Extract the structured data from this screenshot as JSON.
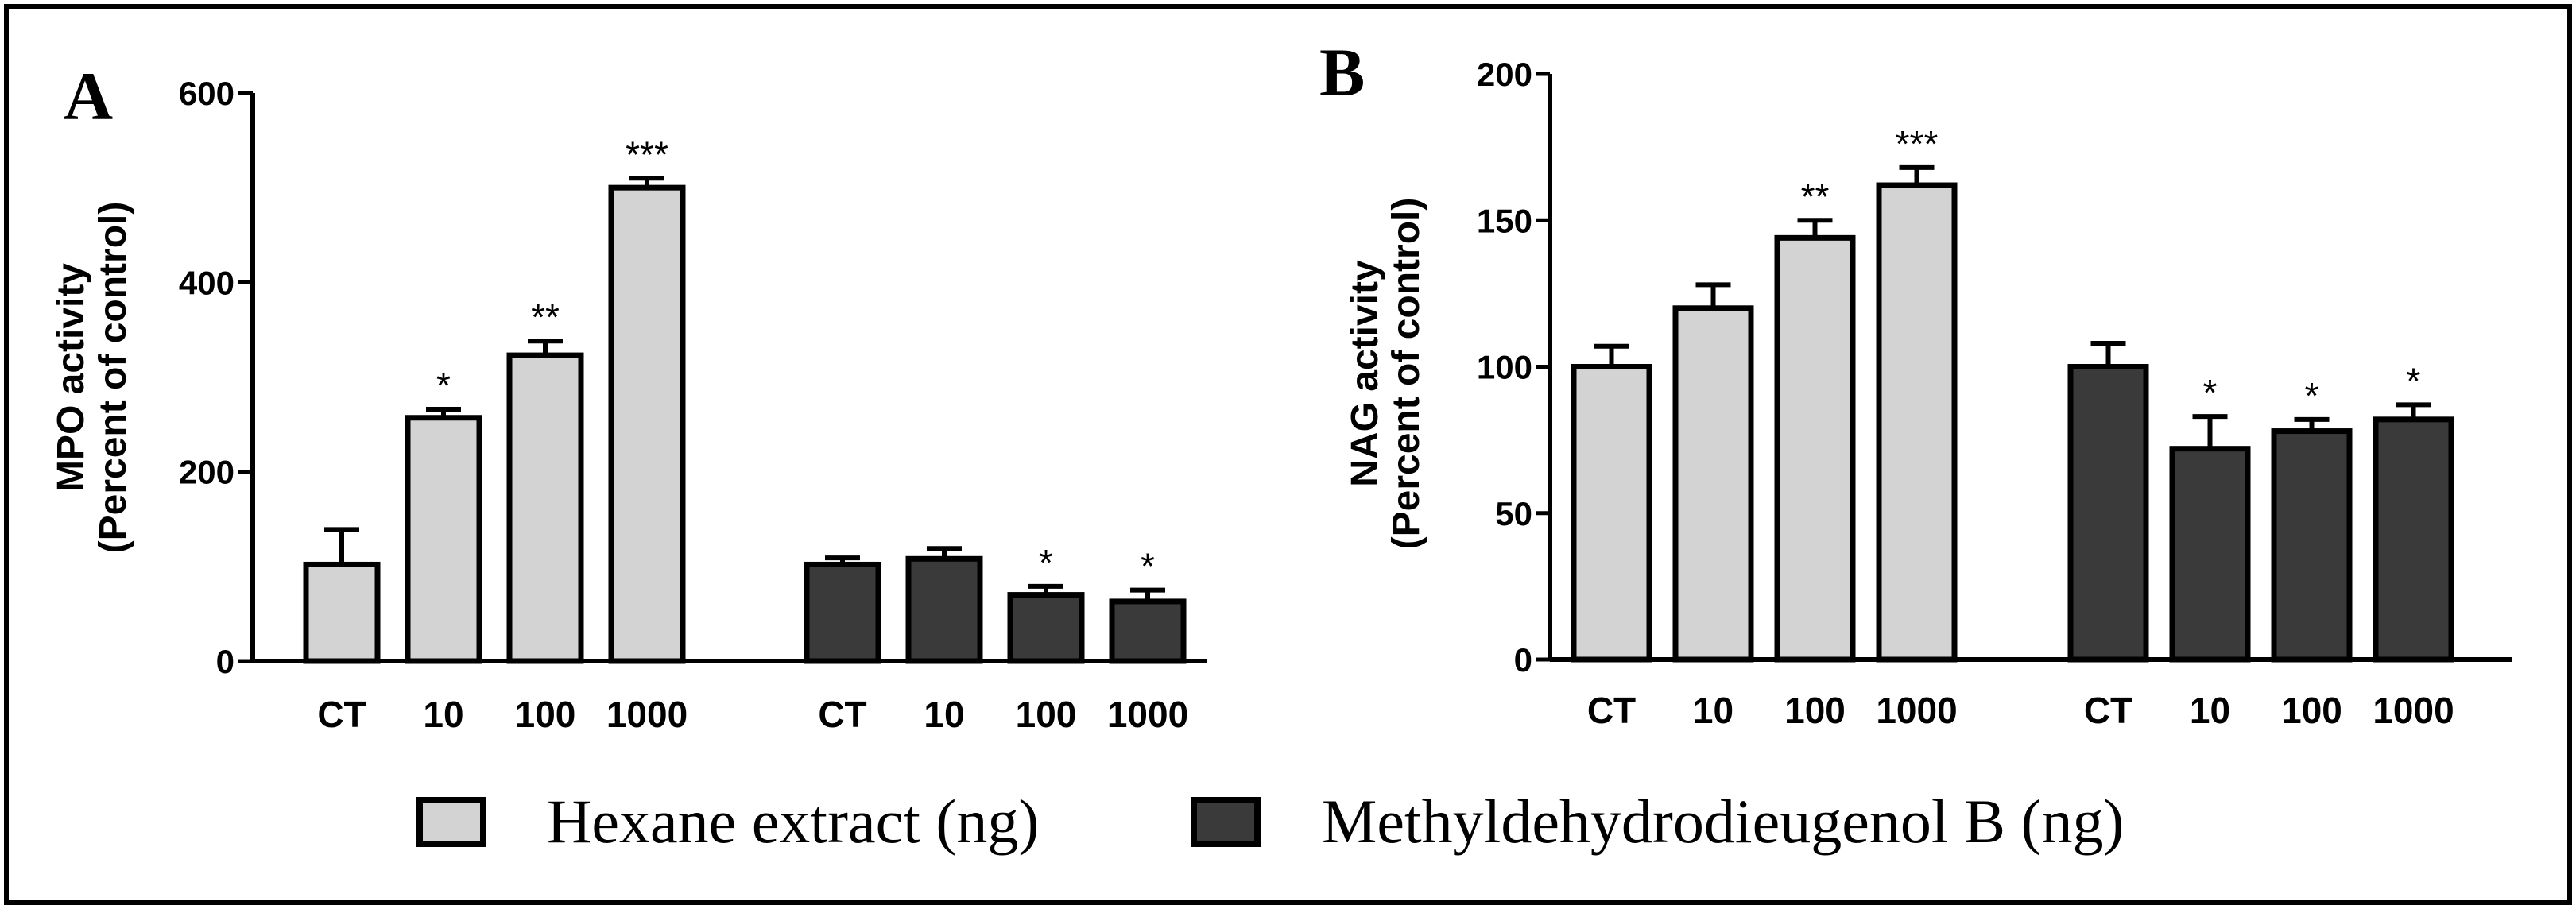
{
  "colors": {
    "hexane": "#d3d3d3",
    "methyl": "#3a3a3a",
    "stroke": "#000000",
    "frame": "#000000"
  },
  "legend": {
    "entries": [
      {
        "label": "Hexane extract (ng)",
        "color": "#d3d3d3"
      },
      {
        "label": "Methyldehydrodieugenol B (ng)",
        "color": "#3a3a3a"
      }
    ]
  },
  "chart_data": [
    {
      "panel": "A",
      "type": "bar",
      "title": "",
      "ylabel_line1": "MPO activity",
      "ylabel_line2": "(Percent of control)",
      "ylim": [
        0,
        600
      ],
      "yticks": [
        0,
        200,
        400,
        600
      ],
      "categories": [
        "CT",
        "10",
        "100",
        "1000"
      ],
      "series": [
        {
          "name": "Hexane extract (ng)",
          "values": [
            102,
            257,
            323,
            500
          ],
          "errors": [
            37,
            9,
            15,
            10
          ],
          "significance": [
            "",
            "*",
            "**",
            "***"
          ]
        },
        {
          "name": "Methyldehydrodieugenol B (ng)",
          "values": [
            102,
            108,
            70,
            63
          ],
          "errors": [
            7,
            11,
            9,
            12
          ],
          "significance": [
            "",
            "",
            "*",
            "*"
          ]
        }
      ]
    },
    {
      "panel": "B",
      "type": "bar",
      "title": "",
      "ylabel_line1": "NAG activity",
      "ylabel_line2": "(Percent of control)",
      "ylim": [
        0,
        200
      ],
      "yticks": [
        0,
        50,
        100,
        150,
        200
      ],
      "categories": [
        "CT",
        "10",
        "100",
        "1000"
      ],
      "series": [
        {
          "name": "Hexane extract (ng)",
          "values": [
            100,
            120,
            144,
            162
          ],
          "errors": [
            7,
            8,
            6,
            6
          ],
          "significance": [
            "",
            "",
            "**",
            "***"
          ]
        },
        {
          "name": "Methyldehydrodieugenol B (ng)",
          "values": [
            100,
            72,
            78,
            82
          ],
          "errors": [
            8,
            11,
            4,
            5
          ],
          "significance": [
            "",
            "*",
            "*",
            "*"
          ]
        }
      ]
    }
  ]
}
